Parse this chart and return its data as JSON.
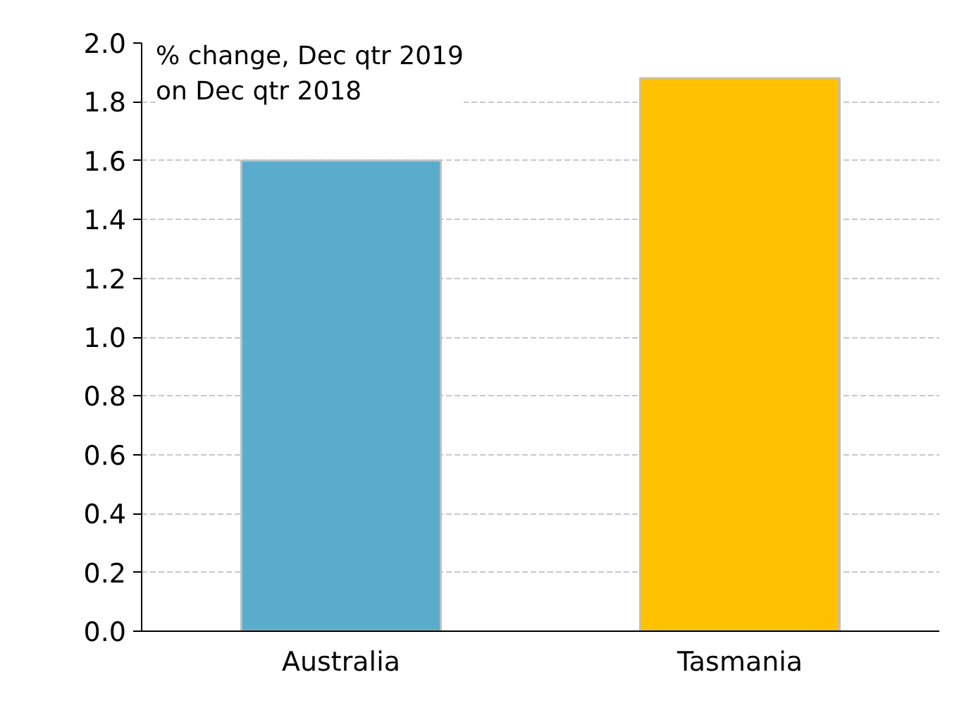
{
  "chart_data": {
    "type": "bar",
    "categories": [
      "Australia",
      "Tasmania"
    ],
    "values": [
      1.6,
      1.88
    ],
    "colors": [
      "#5aaccc",
      "#ffc000"
    ],
    "ylim": [
      0,
      2.0
    ],
    "yticks": [
      {
        "value": 0,
        "label": "0.0"
      },
      0.2,
      0.4,
      0.6,
      0.8,
      {
        "value": 1,
        "label": "1.0"
      },
      1.2,
      1.4,
      1.6,
      1.8,
      {
        "value": 2,
        "label": "2.0"
      }
    ],
    "grid": "y",
    "annotations": [
      "% change, Dec qtr 2019\non Dec qtr 2018"
    ]
  }
}
